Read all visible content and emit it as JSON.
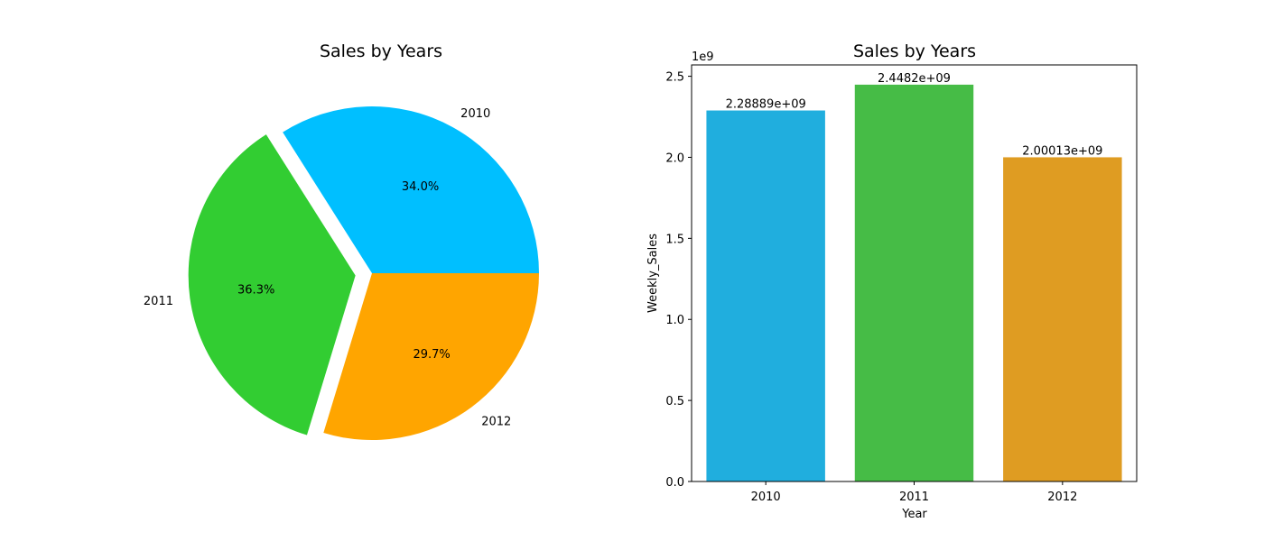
{
  "chart_data": [
    {
      "type": "pie",
      "title": "Sales by Years",
      "labels": [
        "2010",
        "2011",
        "2012"
      ],
      "values": [
        2288890000,
        2448200000,
        2000130000
      ],
      "percent_labels": [
        "34.0%",
        "36.3%",
        "29.7%"
      ],
      "colors": [
        "#00bfff",
        "#32cd32",
        "#ffa500"
      ],
      "exploded": [
        false,
        true,
        false
      ],
      "start_angle_deg": 0,
      "direction": "counterclockwise"
    },
    {
      "type": "bar",
      "title": "Sales by Years",
      "categories": [
        "2010",
        "2011",
        "2012"
      ],
      "values": [
        2288890000,
        2448200000,
        2000130000
      ],
      "value_labels": [
        "2.28889e+09",
        "2.4482e+09",
        "2.00013e+09"
      ],
      "colors": [
        "#20aede",
        "#46bc46",
        "#df9c22"
      ],
      "xlabel": "Year",
      "ylabel": "Weekly_Sales",
      "ylim": [
        0,
        2570000000
      ],
      "scale_label": "1e9",
      "yticks": [
        0,
        500000000,
        1000000000,
        1500000000,
        2000000000,
        2500000000
      ],
      "ytick_labels": [
        "0.0",
        "0.5",
        "1.0",
        "1.5",
        "2.0",
        "2.5"
      ],
      "grid": false
    }
  ]
}
